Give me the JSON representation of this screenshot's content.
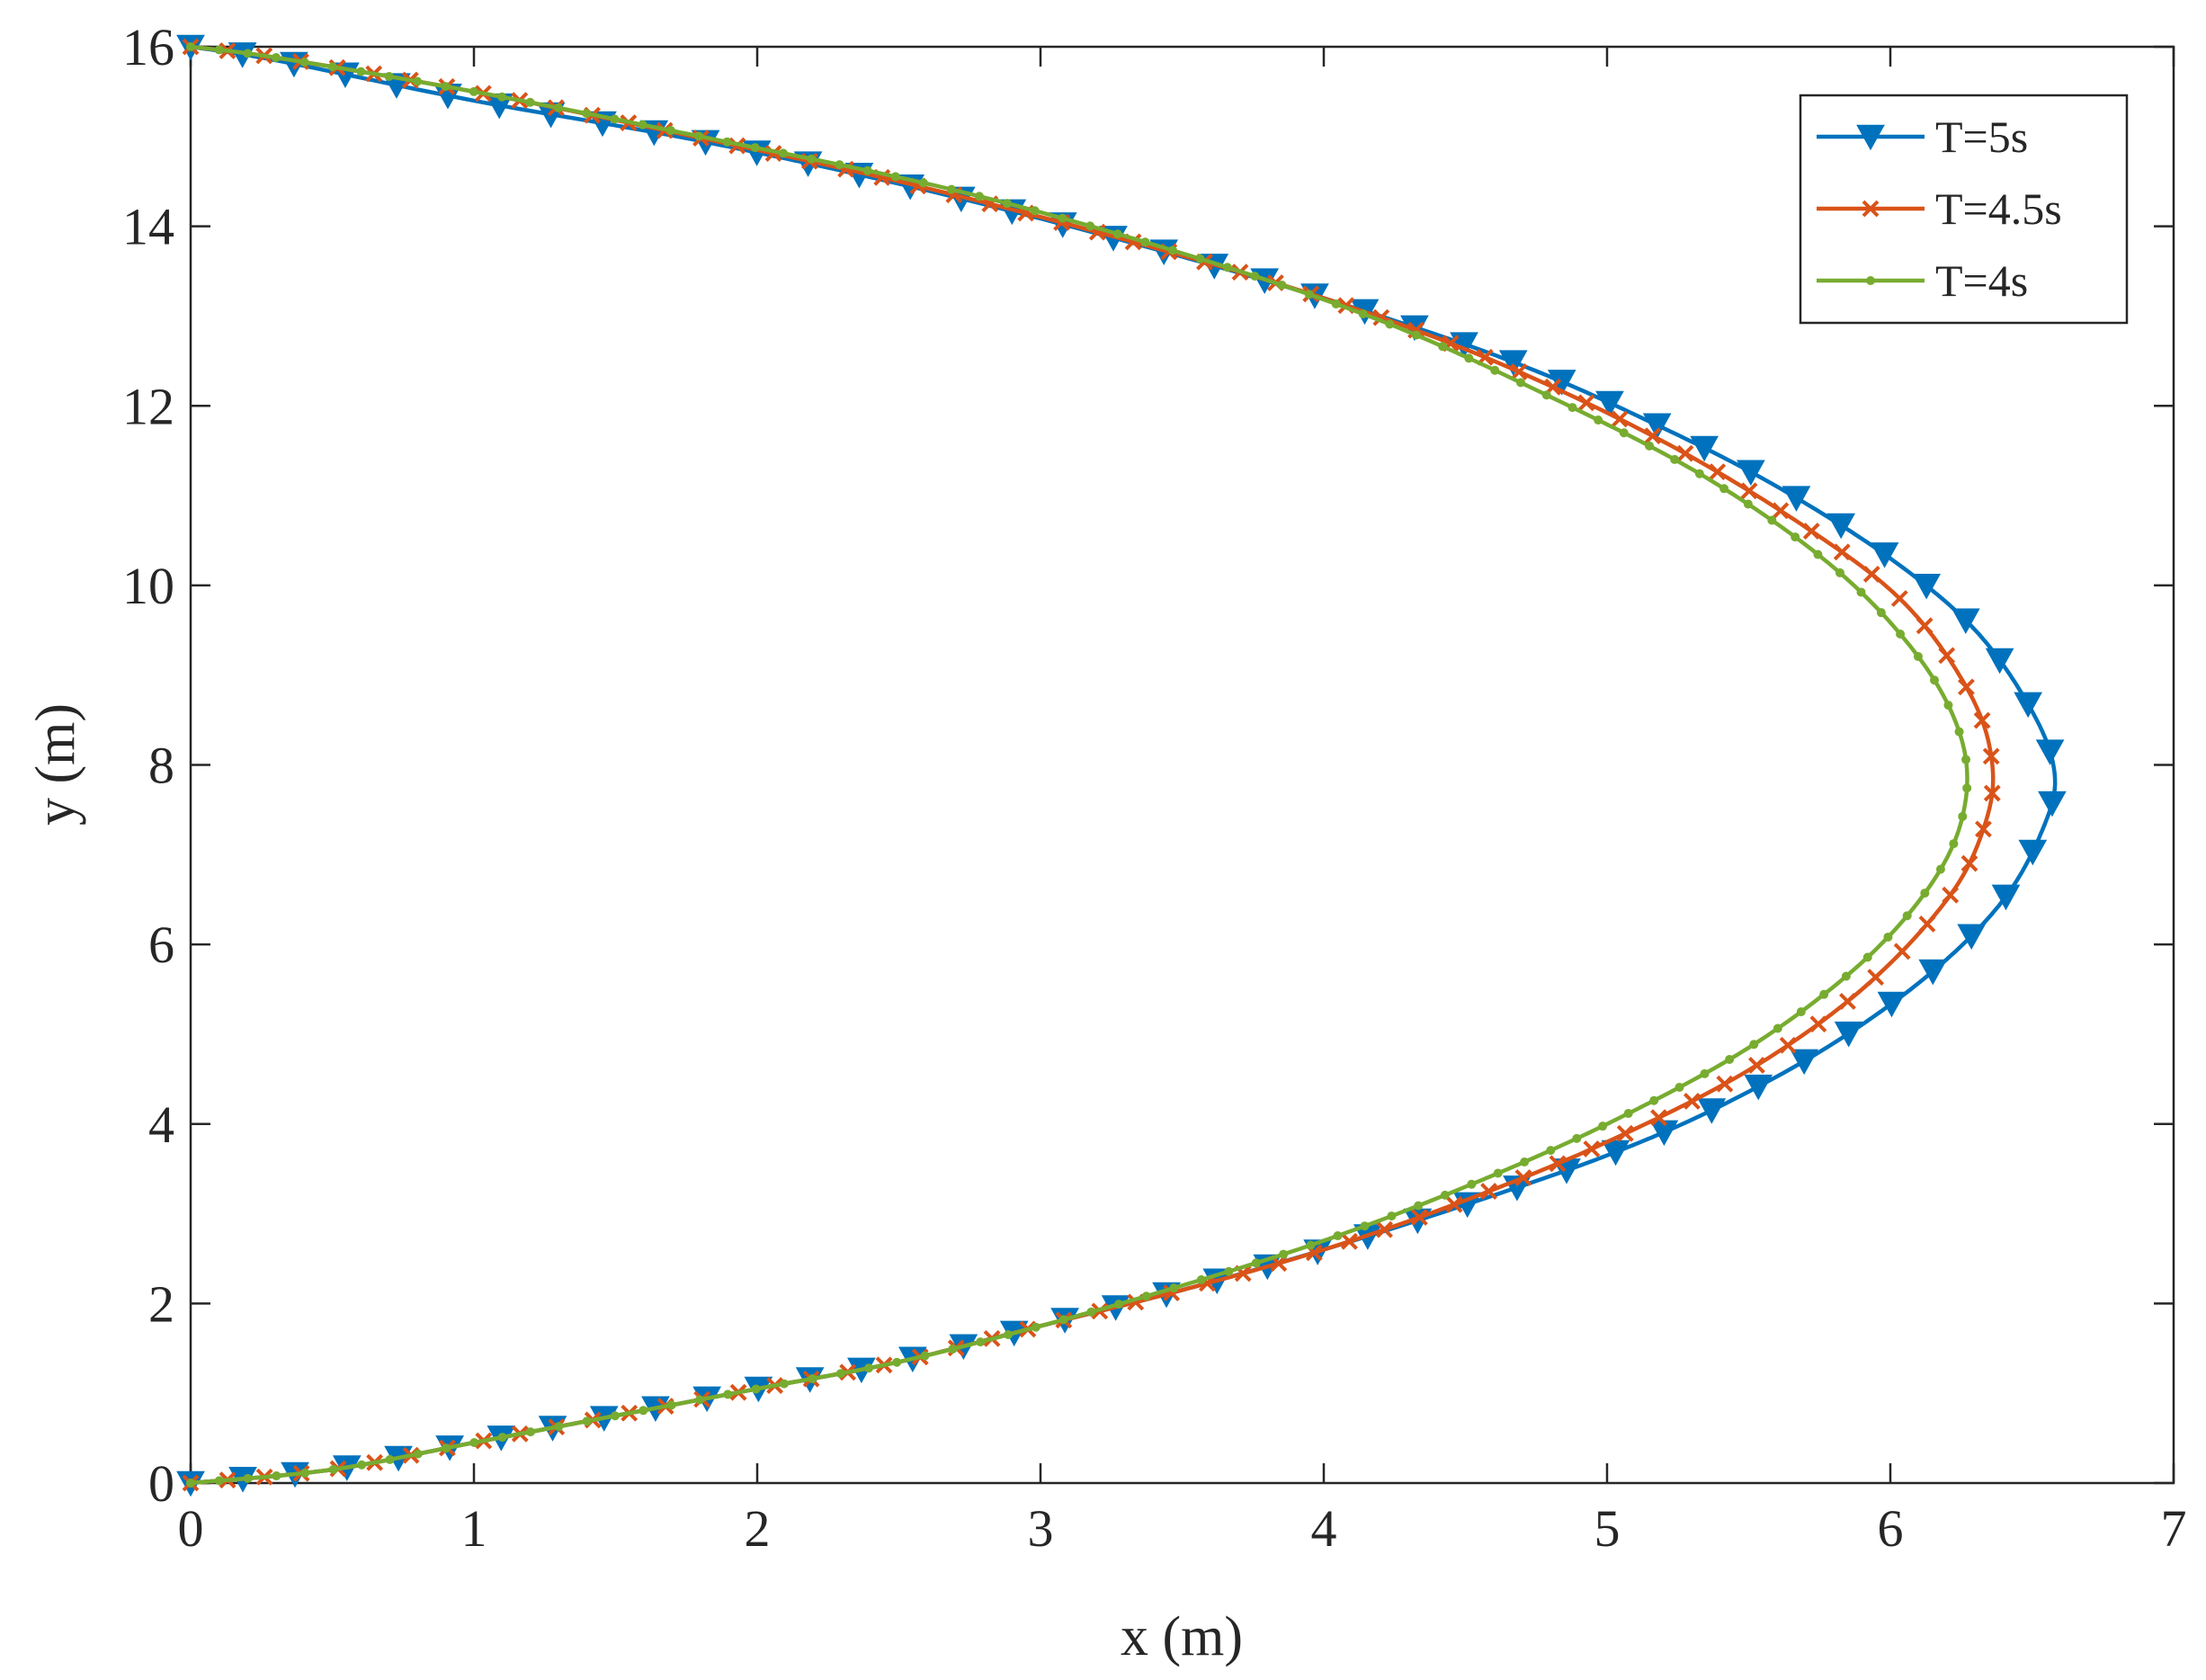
{
  "chart_data": {
    "type": "line",
    "xlabel": "x (m)",
    "ylabel": "y (m)",
    "xlim": [
      0,
      7
    ],
    "ylim": [
      0,
      16
    ],
    "xticks": [
      0,
      1,
      2,
      3,
      4,
      5,
      6,
      7
    ],
    "yticks": [
      0,
      2,
      4,
      6,
      8,
      10,
      12,
      14,
      16
    ],
    "grid": false,
    "box": true,
    "legend_position": "top-right",
    "series": [
      {
        "name": "T=5s",
        "color": "#0072BD",
        "marker": "triangle-down",
        "points": [
          [
            0,
            0
          ],
          [
            0.5,
            0.15
          ],
          [
            1,
            0.45
          ],
          [
            1.5,
            0.75
          ],
          [
            2,
            1.05
          ],
          [
            2.5,
            1.35
          ],
          [
            3,
            1.75
          ],
          [
            3.5,
            2.15
          ],
          [
            4,
            2.6
          ],
          [
            4.5,
            3.1
          ],
          [
            5,
            3.65
          ],
          [
            5.4,
            4.2
          ],
          [
            5.8,
            4.9
          ],
          [
            6.15,
            5.7
          ],
          [
            6.4,
            6.5
          ],
          [
            6.54,
            7.3
          ],
          [
            6.58,
            7.9
          ],
          [
            6.5,
            8.6
          ],
          [
            6.3,
            9.5
          ],
          [
            6,
            10.3
          ],
          [
            5.6,
            11.1
          ],
          [
            5.2,
            11.75
          ],
          [
            4.7,
            12.45
          ],
          [
            4.1,
            13.1
          ],
          [
            3.4,
            13.75
          ],
          [
            2.6,
            14.4
          ],
          [
            1.8,
            14.95
          ],
          [
            1,
            15.4
          ],
          [
            0.3,
            15.85
          ],
          [
            0,
            16
          ]
        ]
      },
      {
        "name": "T=4.5s",
        "color": "#D95319",
        "marker": "x",
        "points": [
          [
            0,
            0
          ],
          [
            0.5,
            0.15
          ],
          [
            1,
            0.45
          ],
          [
            1.5,
            0.75
          ],
          [
            2,
            1.05
          ],
          [
            2.5,
            1.35
          ],
          [
            3,
            1.75
          ],
          [
            3.5,
            2.15
          ],
          [
            4,
            2.6
          ],
          [
            4.5,
            3.15
          ],
          [
            5,
            3.8
          ],
          [
            5.5,
            4.6
          ],
          [
            5.9,
            5.5
          ],
          [
            6.2,
            6.5
          ],
          [
            6.33,
            7.3
          ],
          [
            6.36,
            8
          ],
          [
            6.28,
            8.8
          ],
          [
            6.05,
            9.8
          ],
          [
            5.7,
            10.65
          ],
          [
            5.2,
            11.6
          ],
          [
            4.6,
            12.5
          ],
          [
            4,
            13.2
          ],
          [
            3.3,
            13.85
          ],
          [
            2.5,
            14.5
          ],
          [
            1.7,
            15.05
          ],
          [
            1,
            15.5
          ],
          [
            0.3,
            15.88
          ],
          [
            0,
            16
          ]
        ]
      },
      {
        "name": "T=4s",
        "color": "#77AC30",
        "marker": "dot",
        "points": [
          [
            0,
            0
          ],
          [
            0.5,
            0.15
          ],
          [
            1,
            0.45
          ],
          [
            1.5,
            0.75
          ],
          [
            2,
            1.05
          ],
          [
            2.5,
            1.35
          ],
          [
            3,
            1.75
          ],
          [
            3.5,
            2.2
          ],
          [
            4,
            2.7
          ],
          [
            4.5,
            3.3
          ],
          [
            5,
            4
          ],
          [
            5.5,
            4.85
          ],
          [
            5.9,
            5.8
          ],
          [
            6.15,
            6.7
          ],
          [
            6.26,
            7.5
          ],
          [
            6.25,
            8.3
          ],
          [
            6.1,
            9.2
          ],
          [
            5.8,
            10.2
          ],
          [
            5.35,
            11.2
          ],
          [
            4.8,
            12.1
          ],
          [
            4.2,
            12.95
          ],
          [
            3.5,
            13.7
          ],
          [
            2.7,
            14.4
          ],
          [
            1.8,
            15
          ],
          [
            1,
            15.5
          ],
          [
            0.3,
            15.88
          ],
          [
            0,
            16
          ]
        ]
      }
    ]
  }
}
